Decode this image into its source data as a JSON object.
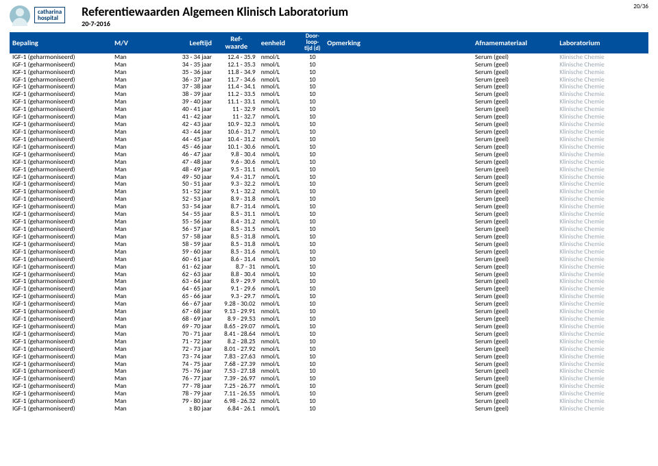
{
  "page_indicator": "20/36",
  "hospital_line1": "catharina",
  "hospital_line2": "hospital",
  "title": "Referentiewaarden Algemeen Klinisch Laboratorium",
  "date": "20-7-2016",
  "columns": {
    "bepaling": "Bepaling",
    "mv": "M/V",
    "leeftijd": "Leeftijd",
    "ref1": "Ref-",
    "ref2": "waarde",
    "eenheid": "eenheid",
    "door1": "Door-",
    "door2": "loop-",
    "door3": "tijd (d)",
    "opmerking": "Opmerking",
    "afname": "Afnamemateriaal",
    "lab": "Laboratorium"
  },
  "row_defaults": {
    "bepaling": "IGF-1 (geharmoniseerd)",
    "mv": "Man",
    "eenheid": "nmol/L",
    "doorloop": "10",
    "opmerking": "",
    "afname": "Serum (geel)",
    "lab": "Klinische Chemie"
  },
  "rows": [
    {
      "leeftijd": "33 - 34 jaar",
      "ref": "12.4 - 35.9"
    },
    {
      "leeftijd": "34 - 35 jaar",
      "ref": "12.1 - 35.3"
    },
    {
      "leeftijd": "35 - 36 jaar",
      "ref": "11.8 - 34.9"
    },
    {
      "leeftijd": "36 - 37 jaar",
      "ref": "11.7 - 34.6"
    },
    {
      "leeftijd": "37 - 38 jaar",
      "ref": "11.4 - 34.1"
    },
    {
      "leeftijd": "38 - 39 jaar",
      "ref": "11.2 - 33.5"
    },
    {
      "leeftijd": "39 - 40 jaar",
      "ref": "11.1 - 33.1"
    },
    {
      "leeftijd": "40 - 41 jaar",
      "ref": "11 - 32.9"
    },
    {
      "leeftijd": "41 - 42 jaar",
      "ref": "11 - 32.7"
    },
    {
      "leeftijd": "42 - 43 jaar",
      "ref": "10.9 - 32.3"
    },
    {
      "leeftijd": "43 - 44 jaar",
      "ref": "10.6 - 31.7"
    },
    {
      "leeftijd": "44 - 45 jaar",
      "ref": "10.4 - 31.2"
    },
    {
      "leeftijd": "45 - 46 jaar",
      "ref": "10.1 - 30.6"
    },
    {
      "leeftijd": "46 - 47 jaar",
      "ref": "9.8 - 30.4"
    },
    {
      "leeftijd": "47 - 48 jaar",
      "ref": "9.6 - 30.6"
    },
    {
      "leeftijd": "48 - 49 jaar",
      "ref": "9.5 - 31.1"
    },
    {
      "leeftijd": "49 - 50 jaar",
      "ref": "9.4 - 31.7"
    },
    {
      "leeftijd": "50 - 51 jaar",
      "ref": "9.3 - 32.2"
    },
    {
      "leeftijd": "51 - 52 jaar",
      "ref": "9.1 - 32.2"
    },
    {
      "leeftijd": "52 - 53 jaar",
      "ref": "8.9 - 31.8"
    },
    {
      "leeftijd": "53 - 54 jaar",
      "ref": "8.7 - 31.4"
    },
    {
      "leeftijd": "54 - 55 jaar",
      "ref": "8.5 - 31.1"
    },
    {
      "leeftijd": "55 - 56 jaar",
      "ref": "8.4 - 31.2"
    },
    {
      "leeftijd": "56 - 57 jaar",
      "ref": "8.5 - 31.5"
    },
    {
      "leeftijd": "57 - 58 jaar",
      "ref": "8.5 - 31.8"
    },
    {
      "leeftijd": "58 - 59 jaar",
      "ref": "8.5 - 31.8"
    },
    {
      "leeftijd": "59 - 60 jaar",
      "ref": "8.5 - 31.6"
    },
    {
      "leeftijd": "60 - 61 jaar",
      "ref": "8.6 - 31.4"
    },
    {
      "leeftijd": "61 - 62 jaar",
      "ref": "8.7 - 31"
    },
    {
      "leeftijd": "62 - 63 jaar",
      "ref": "8.8 - 30.4"
    },
    {
      "leeftijd": "63 - 64 jaar",
      "ref": "8.9 - 29.9"
    },
    {
      "leeftijd": "64 - 65 jaar",
      "ref": "9.1 - 29.6"
    },
    {
      "leeftijd": "65 - 66 jaar",
      "ref": "9.3 - 29.7"
    },
    {
      "leeftijd": "66 - 67 jaar",
      "ref": "9.28 - 30.02"
    },
    {
      "leeftijd": "67 - 68 jaar",
      "ref": "9.13 - 29.91"
    },
    {
      "leeftijd": "68 - 69 jaar",
      "ref": "8.9 - 29.53"
    },
    {
      "leeftijd": "69 - 70 jaar",
      "ref": "8.65 - 29.07"
    },
    {
      "leeftijd": "70 - 71 jaar",
      "ref": "8.41 - 28.64"
    },
    {
      "leeftijd": "71 - 72 jaar",
      "ref": "8.2 - 28.25"
    },
    {
      "leeftijd": "72 - 73 jaar",
      "ref": "8.01 - 27.92"
    },
    {
      "leeftijd": "73 - 74 jaar",
      "ref": "7.83 - 27.63"
    },
    {
      "leeftijd": "74 - 75 jaar",
      "ref": "7.68 - 27.39"
    },
    {
      "leeftijd": "75 - 76 jaar",
      "ref": "7.53 - 27.18"
    },
    {
      "leeftijd": "76 - 77 jaar",
      "ref": "7.39 - 26.97"
    },
    {
      "leeftijd": "77 - 78 jaar",
      "ref": "7.25 - 26.77"
    },
    {
      "leeftijd": "78 - 79 jaar",
      "ref": "7.11 - 26.55"
    },
    {
      "leeftijd": "79 - 80 jaar",
      "ref": "6.98 - 26.32"
    },
    {
      "leeftijd": "≥ 80 jaar",
      "ref": "6.84 - 26.1"
    }
  ]
}
